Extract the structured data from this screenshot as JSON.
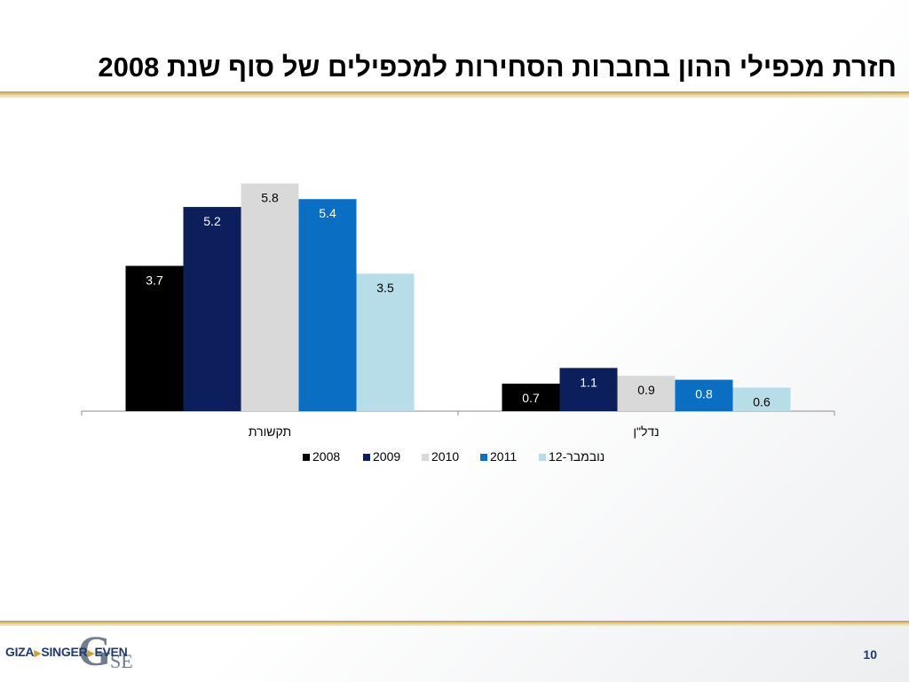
{
  "slide": {
    "title": "חזרת מכפילי ההון בחברות הסחירות למכפילים של סוף שנת 2008",
    "page_number": "10"
  },
  "logo": {
    "text_giza": "GIZA",
    "text_singer": "SINGER",
    "text_even": "EVEN",
    "mark_g": "G",
    "mark_se": "SE"
  },
  "chart_data": {
    "type": "bar",
    "title": "",
    "xlabel": "",
    "ylabel": "",
    "ylim": [
      0,
      6.4
    ],
    "legend_position": "bottom",
    "categories": [
      "תקשורת",
      "נדל\"ן"
    ],
    "series": [
      {
        "name": "2008",
        "values": [
          3.7,
          0.7
        ],
        "color": "#000000",
        "label_color": "#ffffff"
      },
      {
        "name": "2009",
        "values": [
          5.2,
          1.1
        ],
        "color": "#0c1f5c",
        "label_color": "#ffffff"
      },
      {
        "name": "2010",
        "values": [
          5.8,
          0.9
        ],
        "color": "#d9d9d9",
        "label_color": "#000000"
      },
      {
        "name": "2011",
        "values": [
          5.4,
          0.8
        ],
        "color": "#0a6fc2",
        "label_color": "#ffffff"
      },
      {
        "name": "נובמבר-12",
        "values": [
          3.5,
          0.6
        ],
        "color": "#b7dde8",
        "label_color": "#000000"
      }
    ]
  }
}
